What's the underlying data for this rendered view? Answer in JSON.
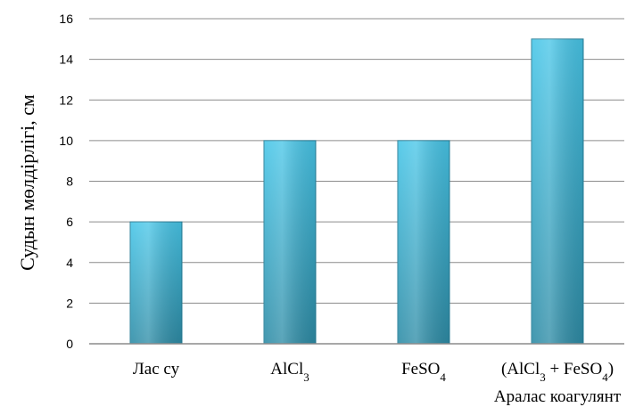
{
  "chart_data": {
    "type": "bar",
    "title": "",
    "xlabel": "",
    "ylabel": "Судын мөлдірлігі, см",
    "ylim": [
      0,
      16
    ],
    "yticks": [
      0,
      2,
      4,
      6,
      8,
      10,
      12,
      14,
      16
    ],
    "grid": "horizontal",
    "categories": [
      "Лас су",
      "AlCl3",
      "FeSO4",
      "(AlCl3 + FeSO4) Аралас коагулянт"
    ],
    "category_parts": [
      [
        {
          "t": "Лас су"
        }
      ],
      [
        {
          "t": "AlCl"
        },
        {
          "t": "3",
          "sub": true
        }
      ],
      [
        {
          "t": "FeSO"
        },
        {
          "t": "4",
          "sub": true
        }
      ],
      [
        {
          "t": "(AlCl"
        },
        {
          "t": "3",
          "sub": true
        },
        {
          "t": " + FeSO"
        },
        {
          "t": "4",
          "sub": true
        },
        {
          "t": ")"
        }
      ]
    ],
    "category_second_line": [
      "",
      "",
      "",
      "Аралас  коагулянт"
    ],
    "values": [
      6,
      10,
      10,
      15
    ],
    "colors": {
      "bar_top": "#48C6E8",
      "bar_bottom": "#2E8CA6",
      "bar_edge": "#2A7F98",
      "grid": "#8C8C8C",
      "axis": "#8C8C8C"
    }
  }
}
